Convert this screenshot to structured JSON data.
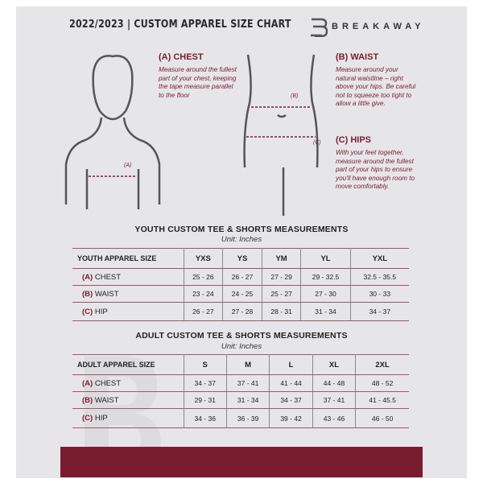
{
  "header": {
    "title": "2022/2023  |  CUSTOM APPAREL SIZE CHART",
    "brand": "BREAKAWAY"
  },
  "measure": {
    "chest": {
      "title": "(A) CHEST",
      "text": "Measure around the fullest part of your chest, keeping the tape measure parallel to the floor",
      "marker": "(A)"
    },
    "waist": {
      "title": "(B) WAIST",
      "text": "Measure around your natural waistline – right above your hips. Be careful not to squeeze too tight to allow a little give.",
      "marker": "(B)"
    },
    "hips": {
      "title": "(C) HIPS",
      "text": "With your feet together, measure around the fullest part of your hips to ensure you'll have enough room to move comfortably.",
      "marker": "(C)"
    }
  },
  "youth": {
    "title": "YOUTH CUSTOM TEE & SHORTS MEASUREMENTS",
    "unit": "Unit: Inches",
    "header": [
      "YOUTH APPAREL SIZE",
      "YXS",
      "YS",
      "YM",
      "YL",
      "YXL"
    ],
    "rows": [
      {
        "code": "(A)",
        "label": "CHEST",
        "values": [
          "25 - 26",
          "26 - 27",
          "27 - 29",
          "29 - 32.5",
          "32.5 - 35.5"
        ]
      },
      {
        "code": "(B)",
        "label": "WAIST",
        "values": [
          "23 - 24",
          "24 - 25",
          "25 - 27",
          "27 - 30",
          "30 - 33"
        ]
      },
      {
        "code": "(C)",
        "label": "HIP",
        "values": [
          "26 - 27",
          "27 - 28",
          "28 - 31",
          "31 - 34",
          "34 - 37"
        ]
      }
    ]
  },
  "adult": {
    "title": "ADULT CUSTOM TEE & SHORTS MEASUREMENTS",
    "unit": "Unit: Inches",
    "header": [
      "ADULT APPAREL SIZE",
      "S",
      "M",
      "L",
      "XL",
      "2XL"
    ],
    "rows": [
      {
        "code": "(A)",
        "label": "CHEST",
        "values": [
          "34 - 37",
          "37 - 41",
          "41 - 44",
          "44 - 48",
          "48 - 52"
        ]
      },
      {
        "code": "(B)",
        "label": "WAIST",
        "values": [
          "29 - 31",
          "31 - 34",
          "34 - 37",
          "37 - 41",
          "41 - 45.5"
        ]
      },
      {
        "code": "(C)",
        "label": "HIP",
        "values": [
          "34 - 36",
          "36 - 39",
          "39 - 42",
          "43 - 46",
          "46 - 50"
        ]
      }
    ]
  },
  "colors": {
    "accent": "#7a1c30",
    "background": "#e6e6e8"
  }
}
